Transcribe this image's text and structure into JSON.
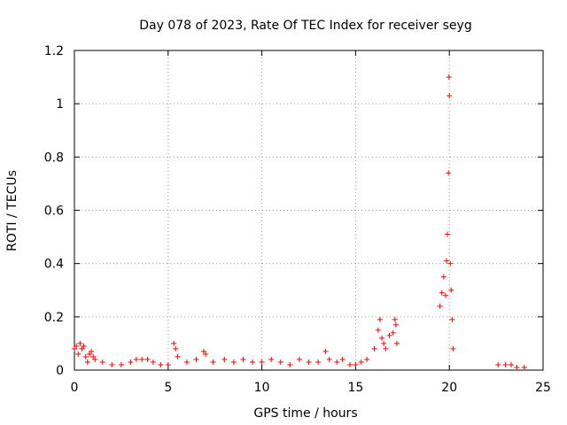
{
  "chart_data": {
    "type": "scatter",
    "title": "Day 078 of 2023, Rate Of TEC Index for receiver seyg",
    "xlabel": "GPS time / hours",
    "ylabel": "ROTI / TECUs",
    "xlim": [
      0,
      25
    ],
    "ylim": [
      0,
      1.2
    ],
    "xticks": [
      0,
      5,
      10,
      15,
      20,
      25
    ],
    "yticks": [
      0,
      0.2,
      0.4,
      0.6,
      0.8,
      1,
      1.2
    ],
    "xtick_labels": [
      "0",
      "5",
      "10",
      "15",
      "20",
      "25"
    ],
    "ytick_labels": [
      "0",
      "0.2",
      "0.4",
      "0.6",
      "0.8",
      "1",
      "1.2"
    ],
    "grid": true,
    "marker": "+",
    "color": "#ff0000",
    "series": [
      {
        "points": [
          [
            0.0,
            0.08
          ],
          [
            0.1,
            0.09
          ],
          [
            0.2,
            0.06
          ],
          [
            0.3,
            0.1
          ],
          [
            0.4,
            0.08
          ],
          [
            0.5,
            0.09
          ],
          [
            0.6,
            0.05
          ],
          [
            0.7,
            0.03
          ],
          [
            0.8,
            0.06
          ],
          [
            0.9,
            0.07
          ],
          [
            1.0,
            0.05
          ],
          [
            1.1,
            0.04
          ],
          [
            1.5,
            0.03
          ],
          [
            2.0,
            0.02
          ],
          [
            2.5,
            0.02
          ],
          [
            3.0,
            0.03
          ],
          [
            3.3,
            0.04
          ],
          [
            3.6,
            0.04
          ],
          [
            3.9,
            0.04
          ],
          [
            4.2,
            0.03
          ],
          [
            4.6,
            0.02
          ],
          [
            5.0,
            0.02
          ],
          [
            5.3,
            0.1
          ],
          [
            5.4,
            0.08
          ],
          [
            5.5,
            0.05
          ],
          [
            6.0,
            0.03
          ],
          [
            6.5,
            0.04
          ],
          [
            6.9,
            0.07
          ],
          [
            7.0,
            0.06
          ],
          [
            7.4,
            0.03
          ],
          [
            8.0,
            0.04
          ],
          [
            8.5,
            0.03
          ],
          [
            9.0,
            0.04
          ],
          [
            9.5,
            0.03
          ],
          [
            10.0,
            0.03
          ],
          [
            10.5,
            0.04
          ],
          [
            11.0,
            0.03
          ],
          [
            11.5,
            0.02
          ],
          [
            12.0,
            0.04
          ],
          [
            12.5,
            0.03
          ],
          [
            13.0,
            0.03
          ],
          [
            13.4,
            0.07
          ],
          [
            13.6,
            0.04
          ],
          [
            14.0,
            0.03
          ],
          [
            14.3,
            0.04
          ],
          [
            14.7,
            0.02
          ],
          [
            15.0,
            0.02
          ],
          [
            15.3,
            0.03
          ],
          [
            15.6,
            0.04
          ],
          [
            16.0,
            0.08
          ],
          [
            16.2,
            0.15
          ],
          [
            16.3,
            0.19
          ],
          [
            16.4,
            0.12
          ],
          [
            16.5,
            0.1
          ],
          [
            16.6,
            0.08
          ],
          [
            16.8,
            0.13
          ],
          [
            17.0,
            0.14
          ],
          [
            17.1,
            0.19
          ],
          [
            17.15,
            0.17
          ],
          [
            17.2,
            0.1
          ],
          [
            19.5,
            0.24
          ],
          [
            19.6,
            0.29
          ],
          [
            19.7,
            0.35
          ],
          [
            19.8,
            0.28
          ],
          [
            19.85,
            0.41
          ],
          [
            19.9,
            0.51
          ],
          [
            19.95,
            0.74
          ],
          [
            19.98,
            1.1
          ],
          [
            20.0,
            1.03
          ],
          [
            20.05,
            0.4
          ],
          [
            20.1,
            0.3
          ],
          [
            20.15,
            0.19
          ],
          [
            20.2,
            0.08
          ],
          [
            22.6,
            0.02
          ],
          [
            23.0,
            0.02
          ],
          [
            23.3,
            0.02
          ],
          [
            23.6,
            0.01
          ],
          [
            24.0,
            0.01
          ]
        ]
      }
    ]
  }
}
